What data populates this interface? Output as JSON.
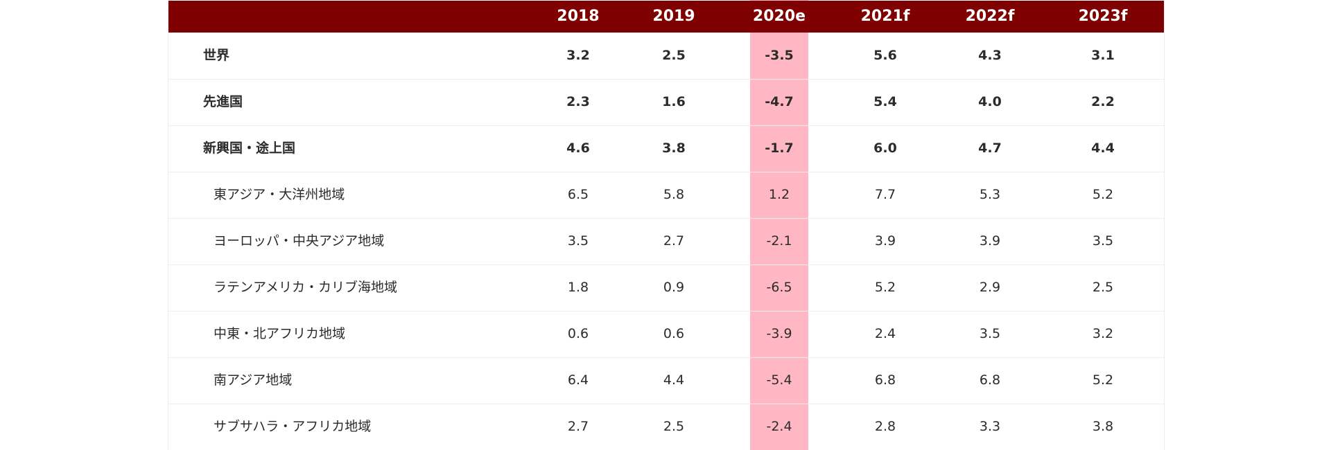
{
  "table": {
    "columns": [
      "2018",
      "2019",
      "2020e",
      "2021f",
      "2022f",
      "2023f"
    ],
    "highlight_color": "#ffb8c3",
    "header_color": "#7f0000",
    "rows": [
      {
        "label": "世界",
        "bold": true,
        "values": [
          "3.2",
          "2.5",
          "-3.5",
          "5.6",
          "4.3",
          "3.1"
        ]
      },
      {
        "label": "先進国",
        "bold": true,
        "values": [
          "2.3",
          "1.6",
          "-4.7",
          "5.4",
          "4.0",
          "2.2"
        ]
      },
      {
        "label": "新興国・途上国",
        "bold": true,
        "values": [
          "4.6",
          "3.8",
          "-1.7",
          "6.0",
          "4.7",
          "4.4"
        ]
      },
      {
        "label": "東アジア・大洋州地域",
        "bold": false,
        "values": [
          "6.5",
          "5.8",
          "1.2",
          "7.7",
          "5.3",
          "5.2"
        ]
      },
      {
        "label": "ヨーロッパ・中央アジア地域",
        "bold": false,
        "values": [
          "3.5",
          "2.7",
          "-2.1",
          "3.9",
          "3.9",
          "3.5"
        ]
      },
      {
        "label": "ラテンアメリカ・カリブ海地域",
        "bold": false,
        "values": [
          "1.8",
          "0.9",
          "-6.5",
          "5.2",
          "2.9",
          "2.5"
        ]
      },
      {
        "label": "中東・北アフリカ地域",
        "bold": false,
        "values": [
          "0.6",
          "0.6",
          "-3.9",
          "2.4",
          "3.5",
          "3.2"
        ]
      },
      {
        "label": "南アジア地域",
        "bold": false,
        "values": [
          "6.4",
          "4.4",
          "-5.4",
          "6.8",
          "6.8",
          "5.2"
        ]
      },
      {
        "label": "サブサハラ・アフリカ地域",
        "bold": false,
        "values": [
          "2.7",
          "2.5",
          "-2.4",
          "2.8",
          "3.3",
          "3.8"
        ]
      }
    ]
  }
}
